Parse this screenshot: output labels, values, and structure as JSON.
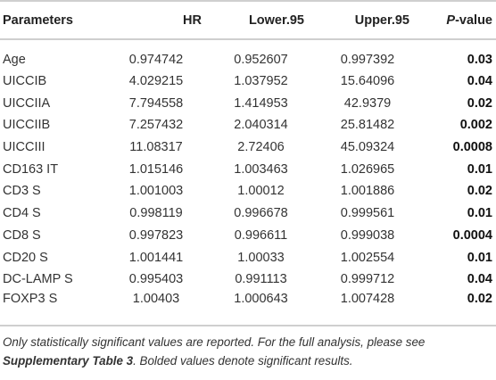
{
  "table": {
    "headers": {
      "parameters": "Parameters",
      "hr": "HR",
      "lower": "Lower.95",
      "upper": "Upper.95",
      "p_prefix": "P",
      "p_suffix": "-value"
    },
    "rows": [
      {
        "parameter": "Age",
        "hr": "0.974742",
        "lower": "0.952607",
        "upper": "0.997392",
        "p": "0.03"
      },
      {
        "parameter": "UICCIB",
        "hr": "4.029215",
        "lower": "1.037952",
        "upper": "15.64096",
        "p": "0.04"
      },
      {
        "parameter": "UICCIIA",
        "hr": "7.794558",
        "lower": "1.414953",
        "upper": "42.9379",
        "p": "0.02"
      },
      {
        "parameter": "UICCIIB",
        "hr": "7.257432",
        "lower": "2.040314",
        "upper": "25.81482",
        "p": "0.002"
      },
      {
        "parameter": "UICCIII",
        "hr": "11.08317",
        "lower": "2.72406",
        "upper": "45.09324",
        "p": "0.0008"
      },
      {
        "parameter": "CD163 IT",
        "hr": "1.015146",
        "lower": "1.003463",
        "upper": "1.026965",
        "p": "0.01"
      },
      {
        "parameter": "CD3 S",
        "hr": "1.001003",
        "lower": "1.00012",
        "upper": "1.001886",
        "p": "0.02"
      },
      {
        "parameter": "CD4 S",
        "hr": "0.998119",
        "lower": "0.996678",
        "upper": "0.999561",
        "p": "0.01"
      },
      {
        "parameter": "CD8 S",
        "hr": "0.997823",
        "lower": "0.996611",
        "upper": "0.999038",
        "p": "0.0004"
      },
      {
        "parameter": "CD20 S",
        "hr": "1.001441",
        "lower": "1.00033",
        "upper": "1.002554",
        "p": "0.01"
      },
      {
        "parameter": "DC-LAMP S",
        "hr": "0.995403",
        "lower": "0.991113",
        "upper": "0.999712",
        "p": "0.04"
      },
      {
        "parameter": "FOXP3 S",
        "hr": "1.00403",
        "lower": "1.000643",
        "upper": "1.007428",
        "p": "0.02"
      }
    ]
  },
  "footnote": {
    "part1": "Only statistically significant values are reported. For the full analysis, please see ",
    "link": "Supplementary Table 3",
    "part2": ". Bolded values denote significant results."
  },
  "colors": {
    "rule": "#cfcfcf",
    "text": "#333333"
  }
}
